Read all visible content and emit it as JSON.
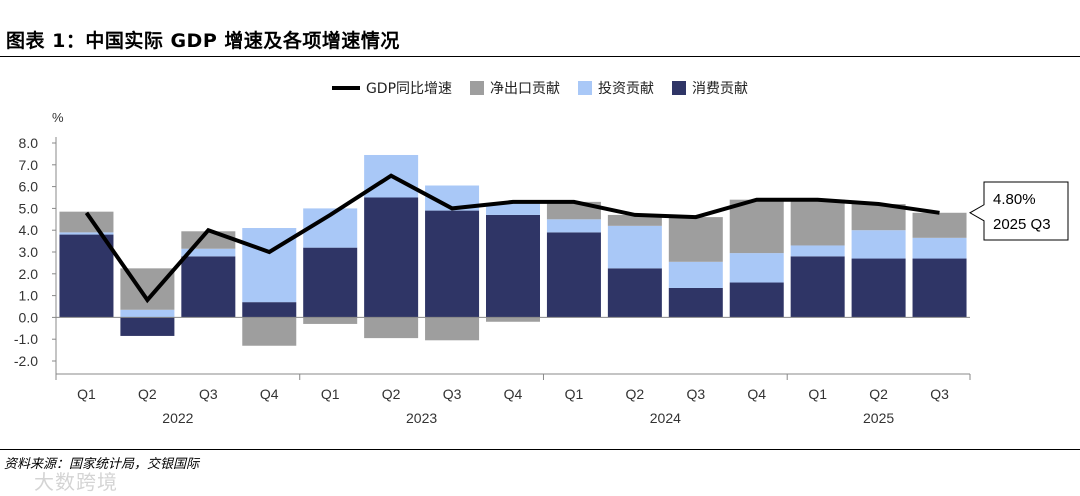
{
  "title": "图表 1：中国实际 GDP 增速及各项增速情况",
  "source": "资料来源：国家统计局，交银国际",
  "watermark": "大数跨境",
  "colors": {
    "consumption": "#2f3566",
    "investment": "#a9c8f7",
    "net_export": "#9e9e9e",
    "gdp_line": "#000000"
  },
  "chart_data": {
    "type": "bar",
    "stacked": true,
    "title": "中国实际 GDP 增速及各项增速情况",
    "ylabel": "%",
    "ylim": [
      -2.0,
      8.0
    ],
    "yticks": [
      -2.0,
      -1.0,
      0.0,
      1.0,
      2.0,
      3.0,
      4.0,
      5.0,
      6.0,
      7.0,
      8.0
    ],
    "categories": [
      "Q1",
      "Q2",
      "Q3",
      "Q4",
      "Q1",
      "Q2",
      "Q3",
      "Q4",
      "Q1",
      "Q2",
      "Q3",
      "Q4",
      "Q1",
      "Q2",
      "Q3"
    ],
    "years": [
      {
        "label": "2022",
        "start": 0,
        "end": 3
      },
      {
        "label": "2023",
        "start": 4,
        "end": 7
      },
      {
        "label": "2024",
        "start": 8,
        "end": 11
      },
      {
        "label": "2025",
        "start": 12,
        "end": 14
      }
    ],
    "series": [
      {
        "name": "消费贡献",
        "key": "consumption",
        "values": [
          3.8,
          -0.85,
          2.8,
          0.7,
          3.2,
          5.5,
          4.9,
          4.7,
          3.9,
          2.25,
          1.35,
          1.6,
          2.8,
          2.7,
          2.7
        ]
      },
      {
        "name": "投资贡献",
        "key": "investment",
        "values": [
          0.1,
          0.35,
          0.35,
          3.4,
          1.8,
          1.95,
          1.15,
          0.55,
          0.6,
          1.95,
          1.2,
          1.35,
          0.5,
          1.3,
          0.95
        ]
      },
      {
        "name": "净出口贡献",
        "key": "net_export",
        "values": [
          0.95,
          1.9,
          0.8,
          -1.3,
          -0.3,
          -0.95,
          -1.05,
          -0.2,
          0.8,
          0.5,
          2.05,
          2.45,
          2.1,
          1.2,
          1.15
        ]
      }
    ],
    "line": {
      "name": "GDP同比增速",
      "values": [
        4.8,
        0.8,
        4.0,
        3.0,
        4.7,
        6.5,
        5.0,
        5.3,
        5.3,
        4.7,
        4.6,
        5.4,
        5.4,
        5.2,
        4.8
      ]
    },
    "legend_order": [
      "GDP同比增速",
      "净出口贡献",
      "投资贡献",
      "消费贡献"
    ],
    "annotation": {
      "value_text": "4.80%",
      "period_text": "2025 Q3"
    }
  }
}
